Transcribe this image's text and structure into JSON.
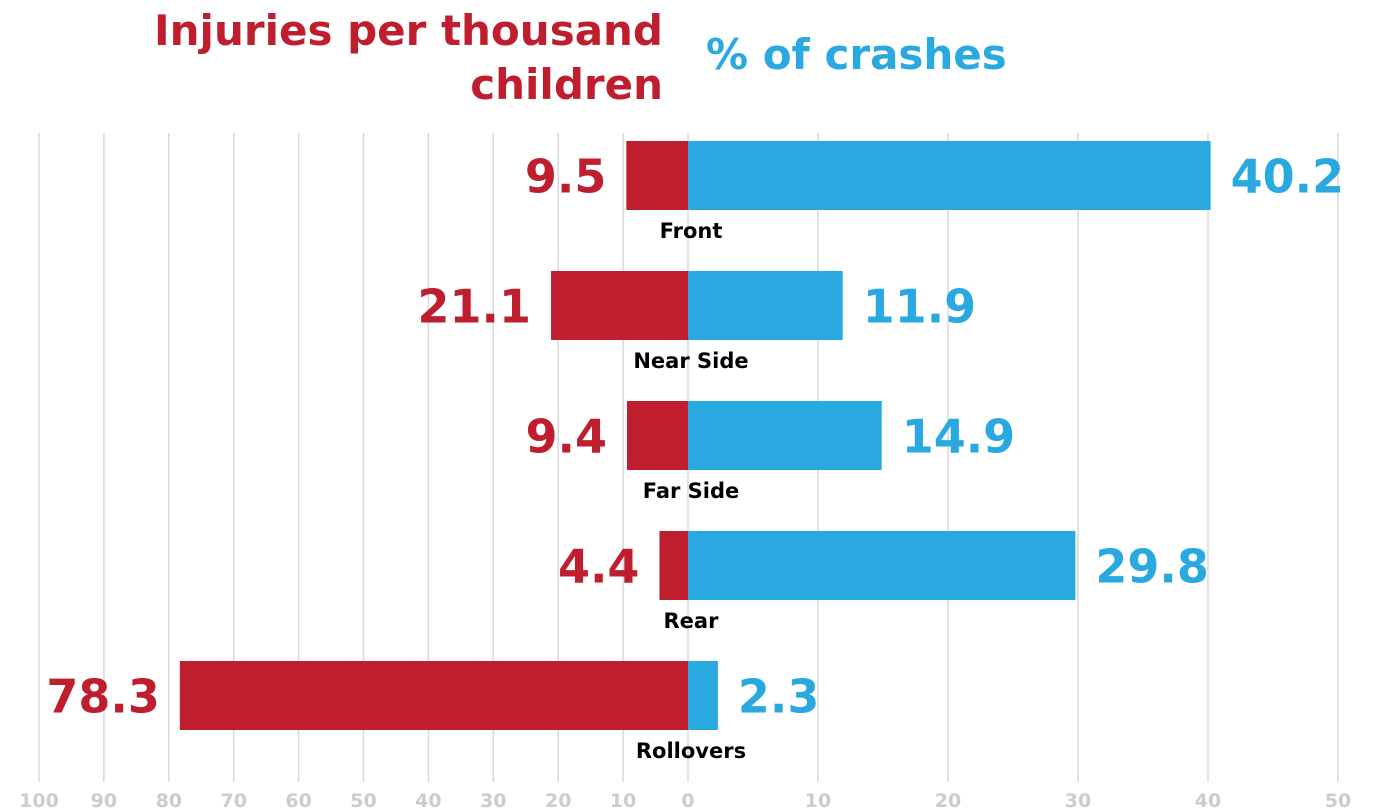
{
  "chart_data": {
    "type": "bar",
    "orientation": "horizontal-diverging",
    "categories": [
      "Front",
      "Near Side",
      "Far Side",
      "Rear",
      "Rollovers"
    ],
    "series": [
      {
        "name": "Injuries per thousand children",
        "side": "left",
        "values": [
          9.5,
          21.1,
          9.4,
          4.4,
          78.3
        ],
        "color": "#be1e2d"
      },
      {
        "name": "% of crashes",
        "side": "right",
        "values": [
          40.2,
          11.9,
          14.9,
          29.8,
          2.3
        ],
        "color": "#29a9e0"
      }
    ],
    "left_axis": {
      "range": [
        0,
        100
      ],
      "ticks": [
        "100",
        "90",
        "80",
        "70",
        "60",
        "50",
        "40",
        "30",
        "20",
        "10",
        "0"
      ]
    },
    "right_axis": {
      "range": [
        0,
        50
      ],
      "ticks": [
        "10",
        "20",
        "30",
        "40",
        "50"
      ]
    },
    "grid": true,
    "legend": "titles-above"
  },
  "colors": {
    "grid": "#d9d9d9",
    "tick_label": "#cccccc",
    "category_label": "#000000"
  }
}
